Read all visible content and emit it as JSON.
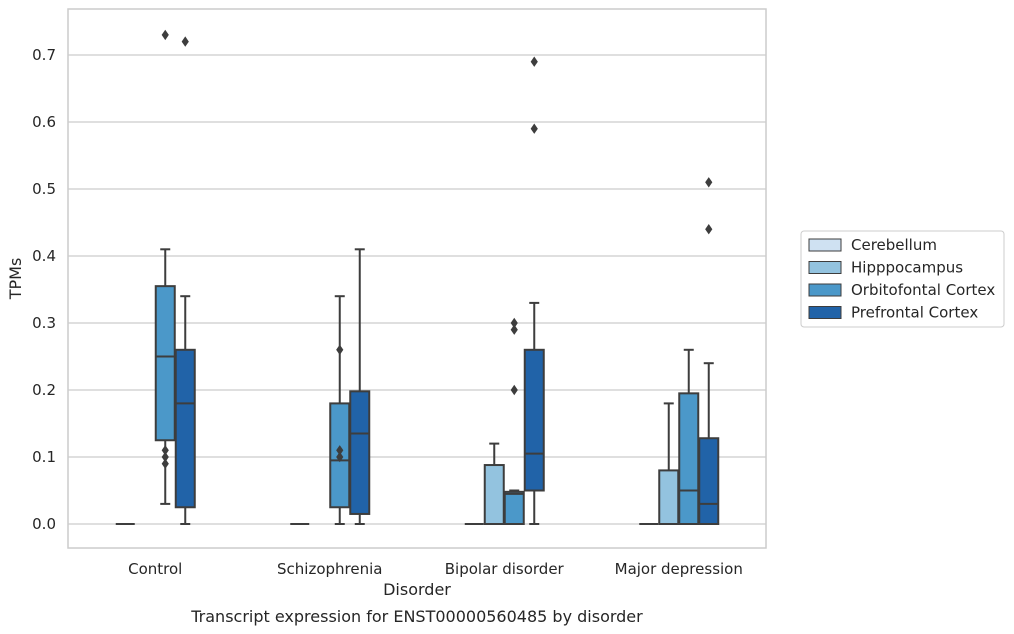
{
  "caption": "Transcript expression for ENST00000560485 by disorder",
  "chart_data": {
    "type": "box",
    "title": "",
    "xlabel": "Disorder",
    "ylabel": "TPMs",
    "ylim": [
      -0.035,
      0.77
    ],
    "yticks": [
      0.0,
      0.1,
      0.2,
      0.3,
      0.4,
      0.5,
      0.6,
      0.7
    ],
    "ytick_labels": [
      "0.0",
      "0.1",
      "0.2",
      "0.3",
      "0.4",
      "0.5",
      "0.6",
      "0.7"
    ],
    "grid": "horizontal",
    "legend_position": "right",
    "categories": [
      "Control",
      "Schizophrenia",
      "Bipolar disorder",
      "Major depression"
    ],
    "series": [
      {
        "name": "Cerebellum",
        "color": "#cfe1f2",
        "boxes": [
          {
            "q1": 0,
            "median": 0,
            "q3": 0,
            "whisker_low": 0,
            "whisker_high": 0,
            "outliers": []
          },
          {
            "q1": 0,
            "median": 0,
            "q3": 0,
            "whisker_low": 0,
            "whisker_high": 0,
            "outliers": []
          },
          {
            "q1": 0,
            "median": 0,
            "q3": 0,
            "whisker_low": 0,
            "whisker_high": 0,
            "outliers": []
          },
          {
            "q1": 0,
            "median": 0,
            "q3": 0,
            "whisker_low": 0,
            "whisker_high": 0,
            "outliers": []
          }
        ]
      },
      {
        "name": "Hipppocampus",
        "color": "#93c3df",
        "boxes": [
          null,
          null,
          {
            "q1": 0,
            "median": 0,
            "q3": 0.088,
            "whisker_low": 0,
            "whisker_high": 0.12,
            "outliers": []
          },
          {
            "q1": 0,
            "median": 0,
            "q3": 0.08,
            "whisker_low": 0,
            "whisker_high": 0.18,
            "outliers": []
          }
        ]
      },
      {
        "name": "Orbitofontal Cortex",
        "color": "#4b98c9",
        "boxes": [
          {
            "q1": 0.125,
            "median": 0.25,
            "q3": 0.355,
            "whisker_low": 0.03,
            "whisker_high": 0.41,
            "outliers": [
              0.09,
              0.1,
              0.11,
              0.73
            ]
          },
          {
            "q1": 0.025,
            "median": 0.095,
            "q3": 0.18,
            "whisker_low": 0,
            "whisker_high": 0.34,
            "outliers": [
              0.1,
              0.11,
              0.26
            ]
          },
          {
            "q1": 0,
            "median": 0.045,
            "q3": 0.048,
            "whisker_low": 0,
            "whisker_high": 0.05,
            "outliers": [
              0.2,
              0.29,
              0.3
            ]
          },
          {
            "q1": 0,
            "median": 0.05,
            "q3": 0.195,
            "whisker_low": 0,
            "whisker_high": 0.26,
            "outliers": []
          }
        ]
      },
      {
        "name": "Prefrontal Cortex",
        "color": "#2163a8",
        "boxes": [
          {
            "q1": 0.025,
            "median": 0.18,
            "q3": 0.26,
            "whisker_low": 0,
            "whisker_high": 0.34,
            "outliers": [
              0.72
            ]
          },
          {
            "q1": 0.015,
            "median": 0.135,
            "q3": 0.198,
            "whisker_low": 0,
            "whisker_high": 0.41,
            "outliers": []
          },
          {
            "q1": 0.05,
            "median": 0.105,
            "q3": 0.26,
            "whisker_low": 0,
            "whisker_high": 0.33,
            "outliers": [
              0.59,
              0.69
            ]
          },
          {
            "q1": 0,
            "median": 0.03,
            "q3": 0.128,
            "whisker_low": 0,
            "whisker_high": 0.24,
            "outliers": [
              0.44,
              0.51
            ]
          }
        ]
      }
    ]
  }
}
